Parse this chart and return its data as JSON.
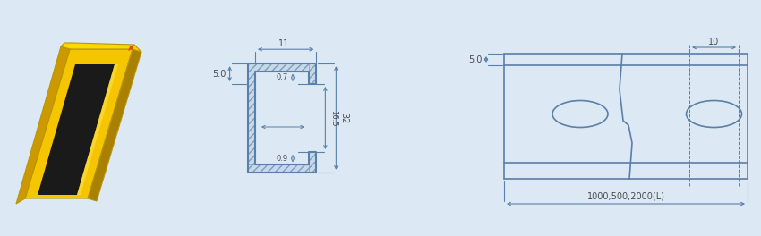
{
  "bg_color": "#dce9f5",
  "line_color": "#5a7fa8",
  "dim_color": "#5a7fa8",
  "text_color": "#4a4a4a",
  "rail_yellow": "#f5c500",
  "rail_yellow_dark": "#cc9900",
  "rail_yellow_edge": "#b8960a",
  "rail_black": "#1a1a1a",
  "hatch_face": "#c8d8e8",
  "hatch_edge": "#7aa0c0"
}
